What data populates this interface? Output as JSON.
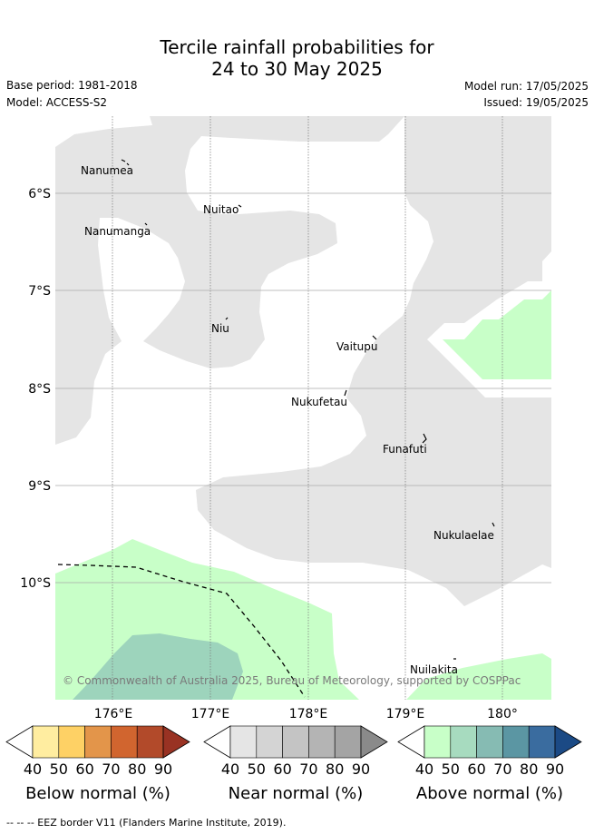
{
  "title_line1": "Tercile rainfall probabilities for",
  "title_line2": "24 to 30 May 2025",
  "base_period": "Base period: 1981-2018",
  "model": "Model: ACCESS-S2",
  "model_run": "Model run: 17/05/2025",
  "issued": "Issued: 19/05/2025",
  "map": {
    "lat_labels": [
      "6°S",
      "7°S",
      "8°S",
      "9°S",
      "10°S"
    ],
    "lon_labels": [
      "176°E",
      "177°E",
      "178°E",
      "179°E",
      "180°"
    ],
    "places": [
      "Nanumea",
      "Nuitao",
      "Nanumanga",
      "Niu",
      "Vaitupu",
      "Nukufetau",
      "Funafuti",
      "Nukulaelae",
      "Nuilakita"
    ],
    "copyright": "© Commonwealth of Australia 2025, Bureau of Meteorology, supported by COSPPac"
  },
  "colors": {
    "near_normal_40": "#e5e5e5",
    "above_normal_40": "#c8ffc8",
    "above_normal_50": "#9dd4bc"
  },
  "colorbars": [
    {
      "title": "Below normal (%)",
      "ticks": [
        "40",
        "50",
        "60",
        "70",
        "80",
        "90"
      ],
      "colors": [
        "#ffeda0",
        "#fed165",
        "#e3954a",
        "#d1652f",
        "#b24a2a",
        "#993223"
      ]
    },
    {
      "title": "Near normal (%)",
      "ticks": [
        "40",
        "50",
        "60",
        "70",
        "80",
        "90"
      ],
      "colors": [
        "#e5e5e5",
        "#d4d4d4",
        "#c4c4c4",
        "#b4b4b4",
        "#a4a4a4",
        "#8a8a8a"
      ]
    },
    {
      "title": "Above normal (%)",
      "ticks": [
        "40",
        "50",
        "60",
        "70",
        "80",
        "90"
      ],
      "colors": [
        "#c8ffc8",
        "#a7dbbf",
        "#86bbb3",
        "#5b96a3",
        "#3a6c9f",
        "#1b4a85"
      ]
    }
  ],
  "footnote": "--  --  -- EEZ border V11 (Flanders Marine Institute, 2019)."
}
